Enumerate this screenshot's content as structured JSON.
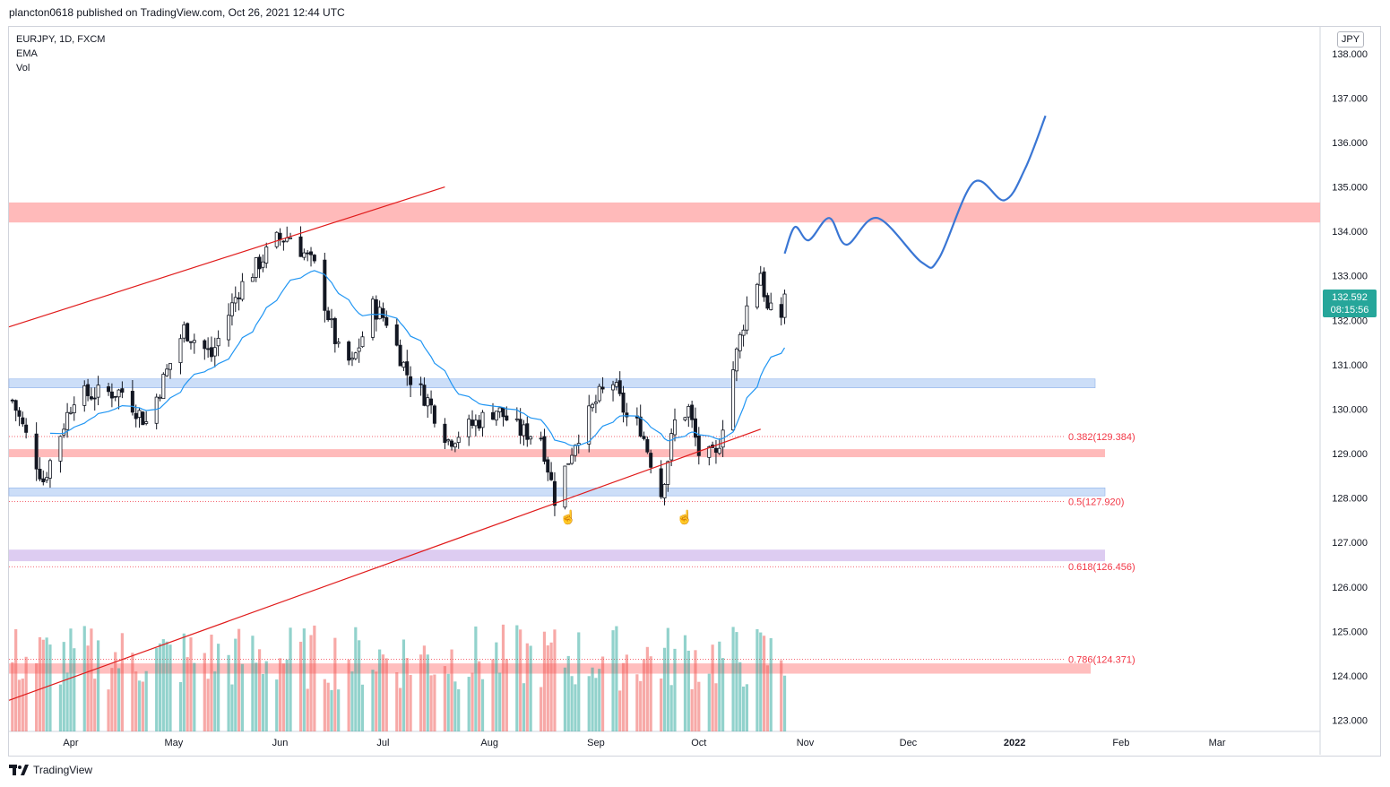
{
  "header": {
    "published_by": "plancton0618 published on TradingView.com, Oct 26, 2021 12:44 UTC"
  },
  "legend": {
    "symbol_line": "EURJPY, 1D, FXCM",
    "indicator1": "EMA",
    "indicator2": "Vol"
  },
  "price_axis": {
    "currency": "JPY",
    "last_price": "132.592",
    "countdown": "08:15:56"
  },
  "footer": {
    "brand": "TradingView"
  },
  "colors": {
    "up": "#26a69a",
    "down": "#ef5350",
    "ema": "#2196f3",
    "projection": "#3a76d4",
    "resistance_zone": "#ffb3b3",
    "support_zone": "#c7daf7",
    "deep_zone": "#d9c7f0",
    "trendline": "#e01b1b"
  },
  "chart_data": {
    "type": "candlestick",
    "title": "",
    "xlabel": "",
    "ylabel": "",
    "ylim": [
      122.75,
      138.6
    ],
    "yticks": [
      "138.000",
      "137.000",
      "136.000",
      "135.000",
      "134.000",
      "133.000",
      "132.000",
      "131.000",
      "130.000",
      "129.000",
      "128.000",
      "127.000",
      "126.000",
      "125.000",
      "124.000",
      "123.000"
    ],
    "xticks": [
      "Apr",
      "May",
      "Jun",
      "Jul",
      "Aug",
      "Sep",
      "Oct",
      "Nov",
      "Dec",
      "2022",
      "Feb",
      "Mar"
    ],
    "zones": [
      {
        "name": "resistance",
        "low": 134.2,
        "high": 134.65
      },
      {
        "name": "support-upper",
        "low": 130.48,
        "high": 130.68
      },
      {
        "name": "support-mid",
        "low": 128.92,
        "high": 129.1
      },
      {
        "name": "support-low",
        "low": 128.05,
        "high": 128.23
      },
      {
        "name": "deep-support",
        "low": 126.58,
        "high": 126.84
      },
      {
        "name": "vol-band",
        "low": 124.05,
        "high": 124.28
      }
    ],
    "fib_levels": [
      {
        "label": "0.382(129.384)",
        "value": 129.384
      },
      {
        "label": "0.5(127.920)",
        "value": 127.92
      },
      {
        "label": "0.618(126.456)",
        "value": 126.456
      },
      {
        "label": "0.786(124.371)",
        "value": 124.371
      }
    ],
    "candle_anchors": [
      {
        "date": "2021-03-15",
        "close": 130.2
      },
      {
        "date": "2021-03-24",
        "close": 128.4
      },
      {
        "date": "2021-04-02",
        "close": 130.3
      },
      {
        "date": "2021-04-16",
        "close": 130.4
      },
      {
        "date": "2021-04-23",
        "close": 129.7
      },
      {
        "date": "2021-05-04",
        "close": 131.8
      },
      {
        "date": "2021-05-12",
        "close": 131.2
      },
      {
        "date": "2021-05-20",
        "close": 132.7
      },
      {
        "date": "2021-05-31",
        "close": 133.8
      },
      {
        "date": "2021-06-04",
        "close": 133.9
      },
      {
        "date": "2021-06-11",
        "close": 133.2
      },
      {
        "date": "2021-06-18",
        "close": 131.3
      },
      {
        "date": "2021-06-22",
        "close": 131.0
      },
      {
        "date": "2021-06-28",
        "close": 132.3
      },
      {
        "date": "2021-07-02",
        "close": 132.0
      },
      {
        "date": "2021-07-08",
        "close": 130.8
      },
      {
        "date": "2021-07-14",
        "close": 130.2
      },
      {
        "date": "2021-07-20",
        "close": 129.3
      },
      {
        "date": "2021-07-26",
        "close": 129.6
      },
      {
        "date": "2021-08-03",
        "close": 130.0
      },
      {
        "date": "2021-08-10",
        "close": 129.5
      },
      {
        "date": "2021-08-16",
        "close": 129.4
      },
      {
        "date": "2021-08-20",
        "close": 128.0
      },
      {
        "date": "2021-08-26",
        "close": 129.3
      },
      {
        "date": "2021-09-02",
        "close": 130.3
      },
      {
        "date": "2021-09-06",
        "close": 130.6
      },
      {
        "date": "2021-09-10",
        "close": 129.8
      },
      {
        "date": "2021-09-14",
        "close": 129.6
      },
      {
        "date": "2021-09-20",
        "close": 128.1
      },
      {
        "date": "2021-09-24",
        "close": 129.7
      },
      {
        "date": "2021-09-28",
        "close": 130.0
      },
      {
        "date": "2021-10-01",
        "close": 129.0
      },
      {
        "date": "2021-10-06",
        "close": 128.9
      },
      {
        "date": "2021-10-11",
        "close": 130.9
      },
      {
        "date": "2021-10-15",
        "close": 132.3
      },
      {
        "date": "2021-10-19",
        "close": 133.1
      },
      {
        "date": "2021-10-21",
        "close": 132.2
      },
      {
        "date": "2021-10-25",
        "close": 132.1
      },
      {
        "date": "2021-10-26",
        "close": 132.59
      }
    ],
    "projection_path": [
      {
        "date": "2021-10-26",
        "price": 133.5
      },
      {
        "date": "2021-10-29",
        "price": 134.1
      },
      {
        "date": "2021-11-02",
        "price": 133.8
      },
      {
        "date": "2021-11-08",
        "price": 134.3
      },
      {
        "date": "2021-11-13",
        "price": 133.7
      },
      {
        "date": "2021-11-22",
        "price": 134.3
      },
      {
        "date": "2021-12-05",
        "price": 133.3
      },
      {
        "date": "2021-12-10",
        "price": 133.4
      },
      {
        "date": "2021-12-20",
        "price": 135.1
      },
      {
        "date": "2021-12-29",
        "price": 134.7
      },
      {
        "date": "2022-01-04",
        "price": 135.4
      },
      {
        "date": "2022-01-10",
        "price": 136.6
      }
    ],
    "trendlines": [
      {
        "from": {
          "date": "2021-03-14",
          "price": 131.85
        },
        "to": {
          "date": "2021-07-19",
          "price": 135.0
        }
      },
      {
        "from": {
          "date": "2021-03-14",
          "price": 123.45
        },
        "to": {
          "date": "2021-10-19",
          "price": 129.55
        }
      }
    ]
  }
}
